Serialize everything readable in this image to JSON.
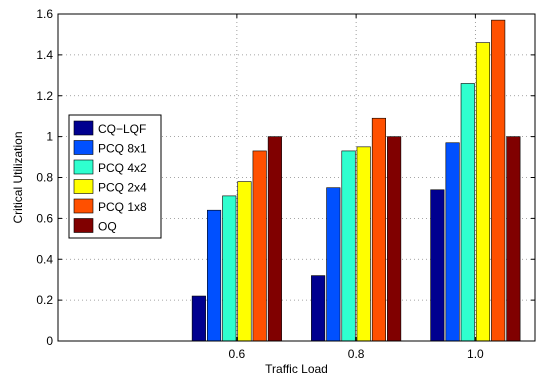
{
  "chart_data": {
    "type": "bar",
    "xlabel": "Traffic Load",
    "ylabel": "Critical Utilization",
    "ylim": [
      0,
      1.6
    ],
    "yticks": [
      "0",
      "0.2",
      "0.4",
      "0.6",
      "0.8",
      "1",
      "1.2",
      "1.4",
      "1.6"
    ],
    "categories": [
      "0.6",
      "0.8",
      "1.0"
    ],
    "grid": true,
    "legend_position": "left",
    "series": [
      {
        "name": "CQ−LQF",
        "color": "#00008f",
        "values": [
          0.22,
          0.32,
          0.74
        ]
      },
      {
        "name": "PCQ 8x1",
        "color": "#0050ff",
        "values": [
          0.64,
          0.75,
          0.97
        ]
      },
      {
        "name": "PCQ 4x2",
        "color": "#2fffcf",
        "values": [
          0.71,
          0.93,
          1.26
        ]
      },
      {
        "name": "PCQ 2x4",
        "color": "#ffff00",
        "values": [
          0.78,
          0.95,
          1.46
        ]
      },
      {
        "name": "PCQ 1x8",
        "color": "#ff5000",
        "values": [
          0.93,
          1.09,
          1.57
        ]
      },
      {
        "name": "OQ",
        "color": "#800000",
        "values": [
          1.0,
          1.0,
          1.0
        ]
      }
    ]
  }
}
